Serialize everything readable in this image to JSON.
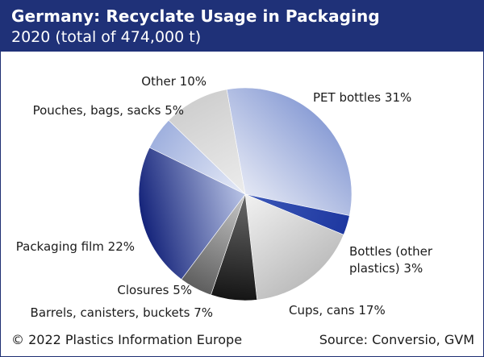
{
  "header": {
    "title": "Germany: Recyclate Usage in Packaging",
    "subtitle": "2020 (total of 474,000 t)"
  },
  "footer": {
    "copyright": "© 2022 Plastics Information Europe",
    "source": "Source: Conversio, GVM"
  },
  "colors": {
    "header_bg": "#1f3178",
    "header_text": "#ffffff"
  },
  "chart_data": {
    "type": "pie",
    "title": "Germany: Recyclate Usage in Packaging",
    "subtitle": "2020 (total of 474,000 t)",
    "unit": "%",
    "slices": [
      {
        "label": "PET bottles 31%",
        "value": 31,
        "gradient": [
          "#e3e7f4",
          "#8c9fd6"
        ]
      },
      {
        "label": "Bottles (other plastics) 3%",
        "label_lines": [
          "Bottles (other",
          "plastics) 3%"
        ],
        "value": 3,
        "gradient": [
          "#3c58b8",
          "#1e38a0"
        ]
      },
      {
        "label": "Cups, cans 17%",
        "value": 17,
        "gradient": [
          "#f2f2f2",
          "#bdbdbd"
        ]
      },
      {
        "label": "Barrels, canisters, buckets 7%",
        "value": 7,
        "gradient": [
          "#6b6b6b",
          "#141414"
        ]
      },
      {
        "label": "Closures 5%",
        "value": 5,
        "gradient": [
          "#c8c8c8",
          "#5e5e5e"
        ]
      },
      {
        "label": "Packaging film 22%",
        "value": 22,
        "gradient": [
          "#b9c4e6",
          "#14237a"
        ]
      },
      {
        "label": "Pouches, bags, sacks 5%",
        "value": 5,
        "gradient": [
          "#e7ebf7",
          "#9fb0de"
        ]
      },
      {
        "label": "Other 10%",
        "value": 10,
        "gradient": [
          "#ececec",
          "#cfcfcf"
        ]
      }
    ]
  }
}
